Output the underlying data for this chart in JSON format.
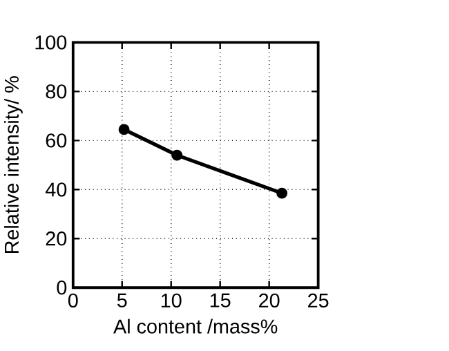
{
  "chart_data": {
    "type": "line",
    "xlabel": "Al content /mass%",
    "ylabel": "Relative intensity/ %",
    "x": [
      5.2,
      10.6,
      21.3
    ],
    "values": [
      64.5,
      54,
      38.5
    ],
    "color": "#000000",
    "marker": "circle",
    "line_style": "solid",
    "grid": true,
    "xlim": [
      0,
      25
    ],
    "xticks": [
      0,
      5,
      10,
      15,
      20,
      25
    ],
    "ylim": [
      0,
      100
    ],
    "yticks": [
      0,
      20,
      40,
      60,
      80,
      100
    ]
  }
}
